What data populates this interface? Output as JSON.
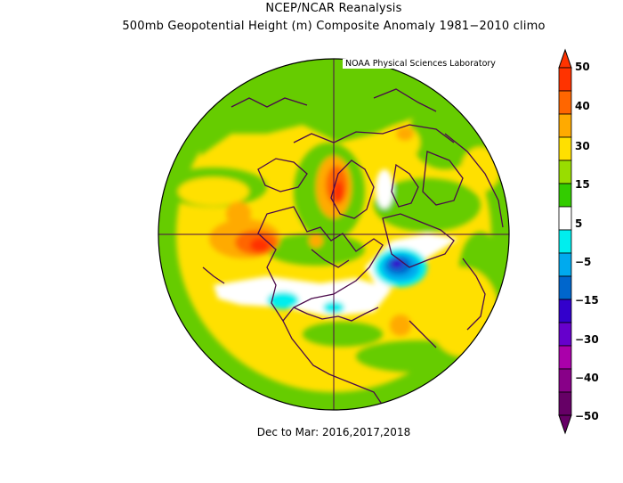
{
  "header": {
    "title": "NCEP/NCAR Reanalysis",
    "subtitle": "500mb Geopotential Height (m) Composite Anomaly 1981−2010 climo",
    "lab": "NOAA Physical Sciences Laboratory"
  },
  "footer": {
    "period": "Dec to Mar: 2016,2017,2018"
  },
  "colorbar": {
    "labels": [
      "50",
      "40",
      "30",
      "15",
      "5",
      "−5",
      "−15",
      "−30",
      "−40",
      "−50"
    ],
    "colors": [
      "#ff3300",
      "#ff6600",
      "#ffaa00",
      "#ffe000",
      "#99dd00",
      "#33cc00",
      "#ffffff",
      "#00eeee",
      "#00aaee",
      "#0066cc",
      "#3300cc",
      "#6600cc",
      "#aa00aa",
      "#880088",
      "#660066"
    ]
  },
  "map": {
    "projection": "north-polar-stereographic",
    "field": "500mb geopotential height anomaly"
  }
}
